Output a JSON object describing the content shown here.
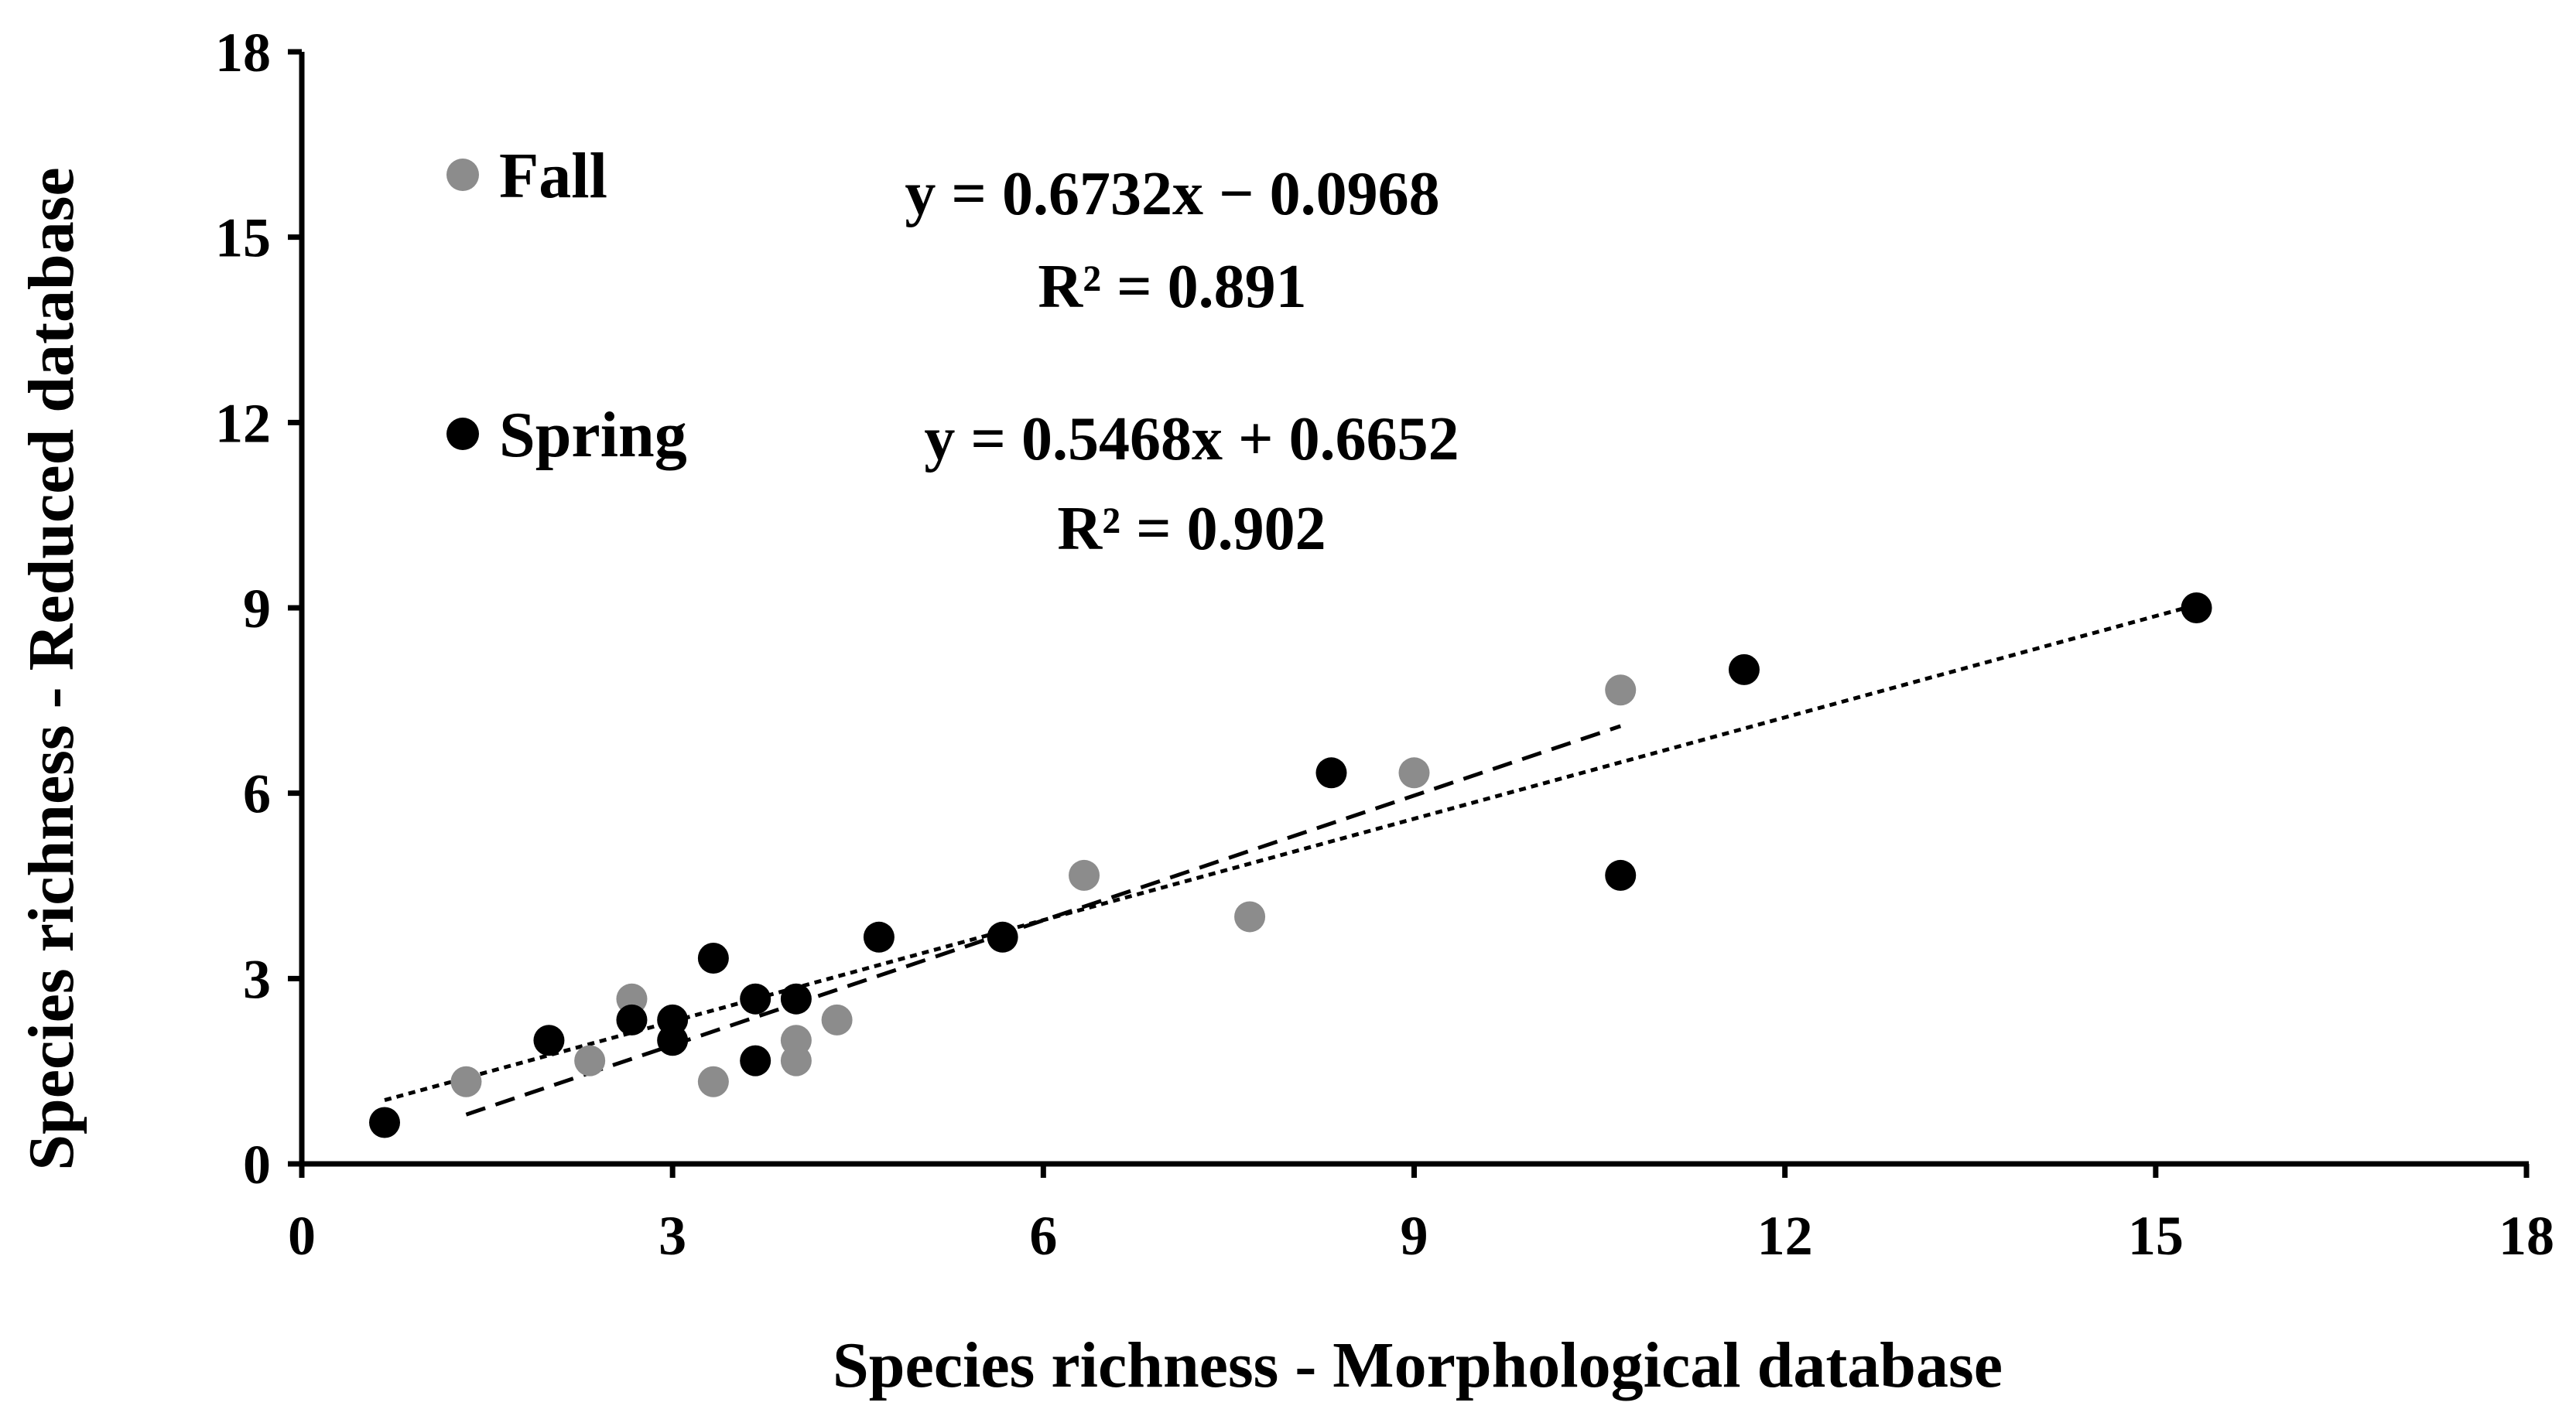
{
  "chart_data": {
    "type": "scatter",
    "xlabel": "Species richness - Morphological database",
    "ylabel": "Species richness - Reduced database",
    "xlim": [
      0,
      18
    ],
    "ylim": [
      0,
      18
    ],
    "xticks": [
      0,
      3,
      6,
      9,
      12,
      15,
      18
    ],
    "yticks": [
      0,
      3,
      6,
      9,
      12,
      15,
      18
    ],
    "grid": false,
    "legend_position": "top-left",
    "series": [
      {
        "name": "Fall",
        "color": "#8c8c8c",
        "points": [
          [
            1.33,
            1.33
          ],
          [
            2.33,
            1.67
          ],
          [
            2.67,
            2.67
          ],
          [
            3.33,
            1.33
          ],
          [
            4.0,
            2.0
          ],
          [
            4.0,
            1.67
          ],
          [
            4.33,
            2.33
          ],
          [
            6.33,
            4.67
          ],
          [
            7.67,
            4.0
          ],
          [
            9.0,
            6.33
          ],
          [
            10.67,
            7.67
          ]
        ],
        "trendline": {
          "style": "dashed",
          "slope": 0.6732,
          "intercept": -0.0968,
          "x_range": [
            1.33,
            10.67
          ],
          "equation": "y = 0.6732x − 0.0968",
          "r2": "R² = 0.891"
        }
      },
      {
        "name": "Spring",
        "color": "#000000",
        "points": [
          [
            0.67,
            0.67
          ],
          [
            2.0,
            2.0
          ],
          [
            2.67,
            2.33
          ],
          [
            3.0,
            2.33
          ],
          [
            3.0,
            2.0
          ],
          [
            3.33,
            3.33
          ],
          [
            3.67,
            2.67
          ],
          [
            3.67,
            1.67
          ],
          [
            4.0,
            2.67
          ],
          [
            4.67,
            3.67
          ],
          [
            5.67,
            3.67
          ],
          [
            8.33,
            6.33
          ],
          [
            10.67,
            4.67
          ],
          [
            11.67,
            8.0
          ],
          [
            15.33,
            9.0
          ]
        ],
        "trendline": {
          "style": "dotted",
          "slope": 0.5468,
          "intercept": 0.6652,
          "x_range": [
            0.67,
            15.33
          ],
          "equation": "y = 0.5468x + 0.6652",
          "r2": "R² = 0.902"
        }
      }
    ]
  }
}
